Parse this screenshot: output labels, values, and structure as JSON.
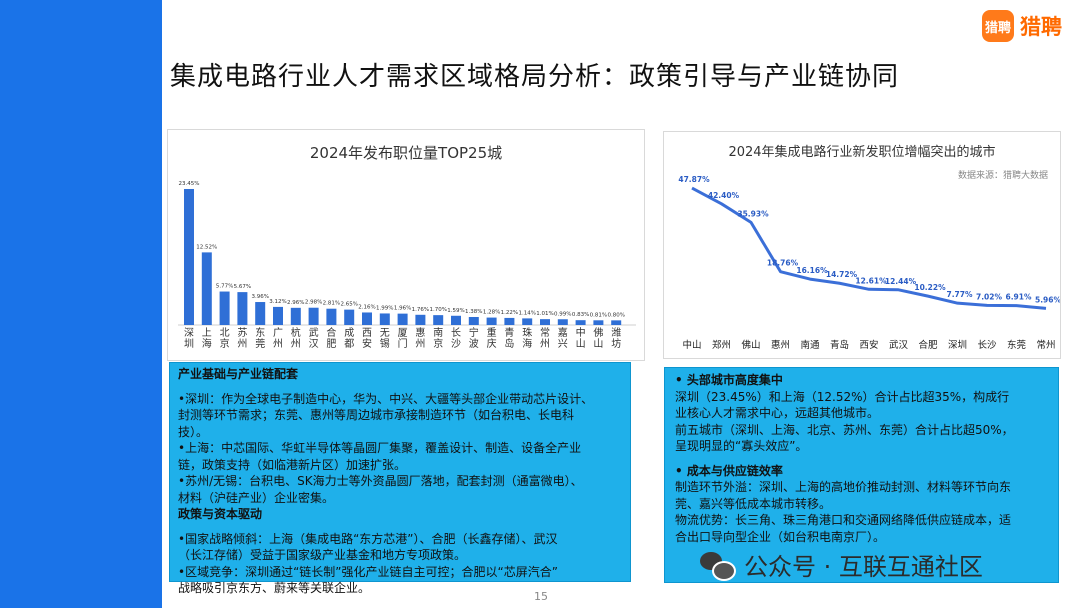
{
  "brand": {
    "badge": "猎聘",
    "name": "猎聘"
  },
  "title": "集成电路行业人才需求区域格局分析：政策引导与产业链协同",
  "page_number": "15",
  "watermark": "公众号 · 互联互通社区",
  "colors": {
    "accent": "#1a73e8",
    "panel": "#1fb0ea",
    "bar": "#2f6fd6",
    "brand": "#ff6a00"
  },
  "chart_data": [
    {
      "type": "bar",
      "title": "2024年发布职位量TOP25城",
      "categories": [
        "深圳",
        "上海",
        "北京",
        "苏州",
        "东莞",
        "广州",
        "杭州",
        "武汉",
        "合肥",
        "成都",
        "西安",
        "无锡",
        "厦门",
        "惠州",
        "南京",
        "长沙",
        "宁波",
        "重庆",
        "青岛",
        "珠海",
        "常州",
        "嘉兴",
        "中山",
        "佛山",
        "潍坊"
      ],
      "values": [
        23.45,
        12.52,
        5.77,
        5.67,
        3.96,
        3.12,
        2.96,
        2.98,
        2.81,
        2.65,
        2.16,
        1.99,
        1.96,
        1.76,
        1.7,
        1.59,
        1.38,
        1.28,
        1.22,
        1.14,
        1.01,
        0.99,
        0.83,
        0.81,
        0.8
      ],
      "labels": [
        "23.45%",
        "12.52%",
        "5.77%",
        "5.67%",
        "3.96%",
        "3.12%",
        "2.96%",
        "2.98%",
        "2.81%",
        "2.65%",
        "2.16%",
        "1.99%",
        "1.96%",
        "1.76%",
        "1.70%",
        "1.59%",
        "1.38%",
        "1.28%",
        "1.22%",
        "1.14%",
        "1.01%",
        "0.99%",
        "0.83%",
        "0.81%",
        "0.80%"
      ],
      "ylim": [
        0,
        25
      ]
    },
    {
      "type": "line",
      "title": "2024年集成电路行业新发职位增幅突出的城市",
      "source": "数据来源：猎聘大数据",
      "categories": [
        "中山",
        "郑州",
        "佛山",
        "惠州",
        "南通",
        "青岛",
        "西安",
        "武汉",
        "合肥",
        "深圳",
        "长沙",
        "东莞",
        "常州"
      ],
      "values": [
        47.87,
        42.4,
        35.93,
        18.76,
        16.16,
        14.72,
        12.61,
        12.44,
        10.22,
        7.77,
        7.02,
        6.91,
        5.96
      ],
      "labels": [
        "47.87%",
        "42.40%",
        "35.93%",
        "18.76%",
        "16.16%",
        "14.72%",
        "12.61%",
        "12.44%",
        "10.22%",
        "7.77%",
        "7.02%",
        "6.91%",
        "5.96%"
      ],
      "ylim": [
        0,
        50
      ]
    }
  ],
  "left_panel": {
    "lines": [
      {
        "text": "产业基础与产业链配套",
        "bold": true
      },
      {
        "text": "",
        "bold": false
      },
      {
        "text": "•深圳：作为全球电子制造中心，华为、中兴、大疆等头部企业带动芯片设计、",
        "bold": false
      },
      {
        "text": "封测等环节需求；东莞、惠州等周边城市承接制造环节（如台积电、长电科",
        "bold": false
      },
      {
        "text": "技）。",
        "bold": false
      },
      {
        "text": "•上海：中芯国际、华虹半导体等晶圆厂集聚，覆盖设计、制造、设备全产业",
        "bold": false
      },
      {
        "text": "链，政策支持（如临港新片区）加速扩张。",
        "bold": false
      },
      {
        "text": "•苏州/无锡：台积电、SK海力士等外资晶圆厂落地，配套封测（通富微电）、",
        "bold": false
      },
      {
        "text": "材料（沪硅产业）企业密集。",
        "bold": false
      },
      {
        "text": "政策与资本驱动",
        "bold": true
      },
      {
        "text": "",
        "bold": false
      },
      {
        "text": "•国家战略倾斜：上海（集成电路“东方芯港”）、合肥（长鑫存储）、武汉",
        "bold": false
      },
      {
        "text": "（长江存储）受益于国家级产业基金和地方专项政策。",
        "bold": false
      },
      {
        "text": "•区域竞争：深圳通过“链长制”强化产业链自主可控；合肥以“芯屏汽合”",
        "bold": false
      },
      {
        "text": "战略吸引京东方、蔚来等关联企业。",
        "bold": false
      }
    ]
  },
  "right_panel": {
    "lines": [
      {
        "text": "•  头部城市高度集中",
        "bold": true
      },
      {
        "text": "深圳（23.45%）和上海（12.52%）合计占比超35%，构成行",
        "bold": false
      },
      {
        "text": "业核心人才需求中心，远超其他城市。",
        "bold": false
      },
      {
        "text": "前五城市（深圳、上海、北京、苏州、东莞）合计占比超50%，",
        "bold": false
      },
      {
        "text": "呈现明显的“寡头效应”。",
        "bold": false
      },
      {
        "text": "",
        "bold": false
      },
      {
        "text": "•  成本与供应链效率",
        "bold": true
      },
      {
        "text": "制造环节外溢：深圳、上海的高地价推动封测、材料等环节向东",
        "bold": false
      },
      {
        "text": "莞、嘉兴等低成本城市转移。",
        "bold": false
      },
      {
        "text": "物流优势：长三角、珠三角港口和交通网络降低供应链成本，适",
        "bold": false
      },
      {
        "text": "合出口导向型企业（如台积电南京厂）。",
        "bold": false
      }
    ]
  }
}
